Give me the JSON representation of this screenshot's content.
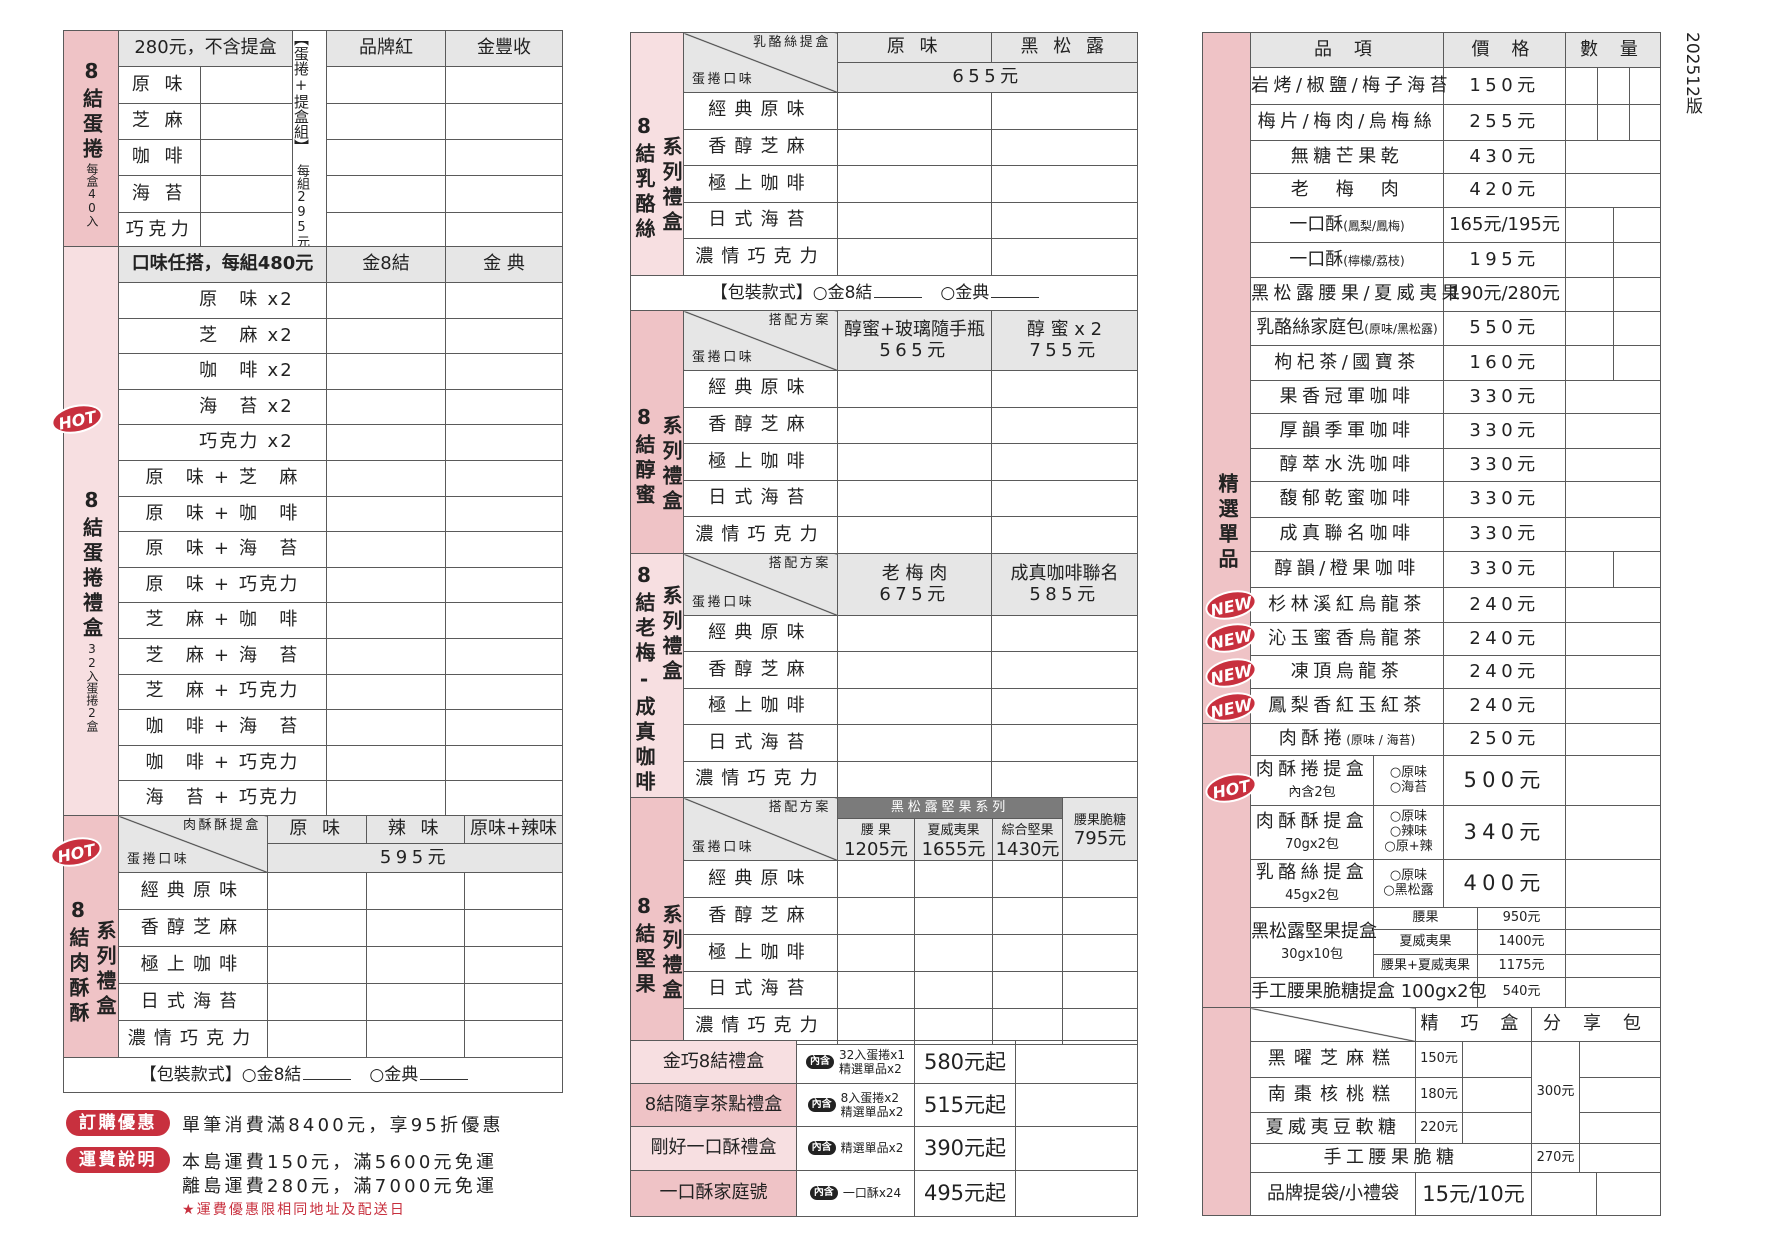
{
  "version": "202512版",
  "flavors": [
    "經典原味",
    "香醇芝麻",
    "極上咖啡",
    "日式海苔",
    "濃情巧克力"
  ],
  "packaging": {
    "label": "【包裝款式】",
    "options": [
      "○金8結",
      "○金典"
    ]
  },
  "badges": {
    "hot": "HOT",
    "new": "NEW",
    "included": "內含"
  },
  "left": {
    "eggroll": {
      "title": "8結蛋捲",
      "count": "每盒40入",
      "price_note": "280元，不含提盒",
      "flavors": [
        "原 味",
        "芝 麻",
        "咖 啡",
        "海 苔",
        "巧克力"
      ],
      "set_label": "【蛋捲+提盒組】",
      "set_price": "每組295元",
      "boxes": [
        "品牌紅",
        "金豐收"
      ]
    },
    "gift": {
      "title": "8結蛋捲禮盒",
      "count": "32入蛋捲2盒",
      "header": "口味任搭，每組480元",
      "boxes": [
        "金8結",
        "金 典"
      ],
      "combos": [
        "原　味 x2",
        "芝　麻 x2",
        "咖　啡 x2",
        "海　苔 x2",
        "巧克力 x2",
        "原　味 + 芝　麻",
        "原　味 + 咖　啡",
        "原　味 + 海　苔",
        "原　味 + 巧克力",
        "芝　麻 + 咖　啡",
        "芝　麻 + 海　苔",
        "芝　麻 + 巧克力",
        "咖　啡 + 海　苔",
        "咖　啡 + 巧克力",
        "海　苔 + 巧克力"
      ]
    },
    "meat": {
      "title": "8結肉酥酥",
      "series": "系列禮盒",
      "corner_top": "肉酥酥提盒",
      "corner_bottom": "蛋捲口味",
      "cols": [
        "原 味",
        "辣 味",
        "原味+辣味"
      ],
      "price": "595元"
    }
  },
  "promo": {
    "order_badge": "訂購優惠",
    "order_text": "單筆消費滿8400元，享95折優惠",
    "ship_badge": "運費說明",
    "ship_lines": [
      "本島運費150元，滿5600元免運",
      "離島運費280元，滿7000元免運"
    ],
    "ship_note": "★運費優惠限相同地址及配送日"
  },
  "middle": {
    "cheese": {
      "title": "8結乳酪絲",
      "series": "系列禮盒",
      "corner_top": "乳酪絲提盒",
      "corner_bottom": "蛋捲口味",
      "cols": [
        "原 味",
        "黑 松 露"
      ],
      "price": "655元"
    },
    "honey": {
      "title": "8結醇蜜",
      "series": "系列禮盒",
      "corner_top": "搭配方案",
      "corner_bottom": "蛋捲口味",
      "plans": [
        {
          "name": "醇蜜+玻璃隨手瓶",
          "price": "565元"
        },
        {
          "name": "醇 蜜 x 2",
          "price": "755元"
        }
      ]
    },
    "plum": {
      "title": "8結老梅-成真咖啡",
      "series": "系列禮盒",
      "corner_top": "搭配方案",
      "corner_bottom": "蛋捲口味",
      "plans": [
        {
          "name": "老 梅 肉",
          "price": "675元"
        },
        {
          "name": "成真咖啡聯名",
          "price": "585元"
        }
      ]
    },
    "nut": {
      "title": "8結堅果",
      "series": "系列禮盒",
      "corner_top": "搭配方案",
      "corner_bottom": "蛋捲口味",
      "group": "黑松露堅果系列",
      "plans": [
        {
          "name": "腰 果",
          "price": "1205元"
        },
        {
          "name": "夏威夷果",
          "price": "1655元"
        },
        {
          "name": "綜合堅果",
          "price": "1430元"
        }
      ],
      "extra": {
        "name": "腰果脆糖",
        "price": "795元"
      }
    },
    "sets": [
      {
        "name": "金巧8結禮盒",
        "contents": [
          "32入蛋捲x1",
          "精選單品x2"
        ],
        "price": "580元起"
      },
      {
        "name": "8結隨享茶點禮盒",
        "contents": [
          "8入蛋捲x2",
          "精選單品x2"
        ],
        "price": "515元起"
      },
      {
        "name": "剛好一口酥禮盒",
        "contents": [
          "精選單品x2"
        ],
        "price": "390元起"
      },
      {
        "name": "一口酥家庭號",
        "contents": [
          "一口酥x24"
        ],
        "price": "495元起"
      }
    ]
  },
  "right": {
    "label": "精選單品",
    "header": [
      "品 項",
      "價 格",
      "數 量"
    ],
    "items": [
      {
        "name": "岩烤/椒鹽/梅子海苔",
        "price": "150元"
      },
      {
        "name": "梅片/梅肉/烏梅絲",
        "price": "255元"
      },
      {
        "name": "無糖芒果乾",
        "price": "430元"
      },
      {
        "name": "老　梅　肉",
        "price": "420元"
      },
      {
        "name": "一口酥",
        "note": "(鳳梨/鳳梅)",
        "price": "165元/195元"
      },
      {
        "name": "一口酥",
        "note": "(檸檬/荔枝)",
        "price": "195元"
      },
      {
        "name": "黑松露腰果/夏威夷果",
        "price": "190元/280元"
      },
      {
        "name": "乳酪絲家庭包",
        "note": "(原味/黑松露)",
        "price": "550元"
      },
      {
        "name": "枸杞茶/國寶茶",
        "price": "160元"
      },
      {
        "name": "果香冠軍咖啡",
        "price": "330元"
      },
      {
        "name": "厚韻季軍咖啡",
        "price": "330元"
      },
      {
        "name": "醇萃水洗咖啡",
        "price": "330元"
      },
      {
        "name": "馥郁乾蜜咖啡",
        "price": "330元"
      },
      {
        "name": "成真聯名咖啡",
        "price": "330元"
      },
      {
        "name": "醇韻/橙果咖啡",
        "price": "330元"
      },
      {
        "name": "杉林溪紅烏龍茶",
        "price": "240元",
        "badge": "NEW"
      },
      {
        "name": "沁玉蜜香烏龍茶",
        "price": "240元",
        "badge": "NEW"
      },
      {
        "name": "凍頂烏龍茶",
        "price": "240元",
        "badge": "NEW"
      },
      {
        "name": "鳳梨香紅玉紅茶",
        "price": "240元",
        "badge": "NEW"
      }
    ],
    "meat_roll": {
      "name": "肉酥捲",
      "note": "(原味 / 海苔)",
      "price": "250元"
    },
    "gift_boxes": [
      {
        "name": "肉酥捲提盒",
        "sub": "內含2包",
        "options": [
          "○原味",
          "○海苔"
        ],
        "price": "500元",
        "badge": "HOT"
      },
      {
        "name": "肉酥酥提盒",
        "sub": "70gx2包",
        "options": [
          "○原味",
          "○辣味",
          "○原+辣"
        ],
        "price": "340元"
      },
      {
        "name": "乳酪絲提盒",
        "sub": "45gx2包",
        "options": [
          "○原味",
          "○黑松露"
        ],
        "price": "400元"
      }
    ],
    "nut_box": {
      "name": "黑松露堅果提盒",
      "sub": "30gx10包",
      "variants": [
        {
          "name": "腰果",
          "price": "950元"
        },
        {
          "name": "夏威夷果",
          "price": "1400元"
        },
        {
          "name": "腰果+夏威夷果",
          "price": "1175元"
        }
      ]
    },
    "brittle_box": {
      "name": "手工腰果脆糖提盒 100gx2包",
      "price": "540元"
    },
    "cakes": {
      "headers": [
        "精 巧 盒",
        "分 享 包"
      ],
      "items": [
        {
          "name": "黑曜芝麻糕",
          "price": "150元"
        },
        {
          "name": "南棗核桃糕",
          "price": "180元"
        },
        {
          "name": "夏威夷豆軟糖",
          "price": "220元"
        }
      ],
      "share_price": "300元",
      "brittle": {
        "name": "手工腰果脆糖",
        "price": "270元"
      },
      "bag": {
        "name": "品牌提袋/小禮袋",
        "price": "15元/10元"
      }
    }
  }
}
